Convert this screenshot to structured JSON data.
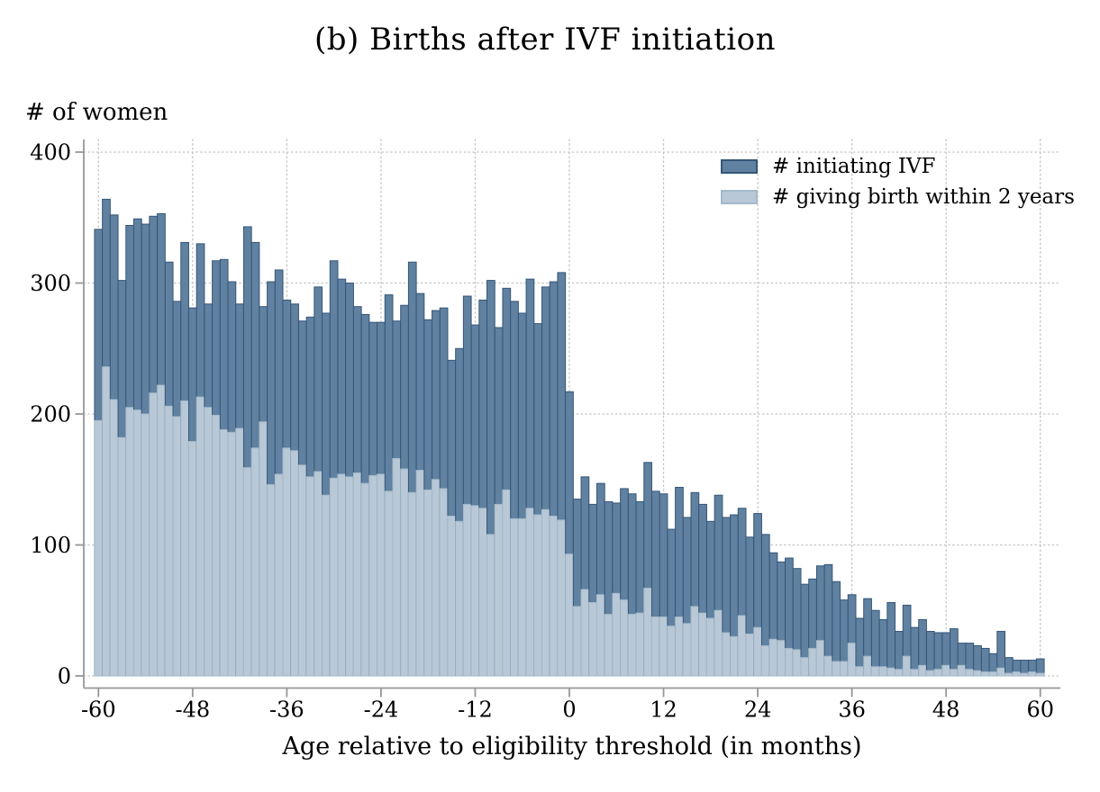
{
  "title": "(b) Births after IVF initiation",
  "chart_data": {
    "type": "bar",
    "overlay": true,
    "title": "(b) Births after IVF initiation",
    "xlabel": "Age relative to eligibility threshold (in months)",
    "ylabel": "# of women",
    "legend_position": "top-right-inside",
    "grid": {
      "on": true,
      "style": "dotted",
      "color": "#c3c3c3"
    },
    "axis_color": "#979797",
    "ylim": [
      0,
      400
    ],
    "xlim": [
      -62.5,
      62.5
    ],
    "y_ticks": [
      0,
      100,
      200,
      300,
      400
    ],
    "x_ticks": [
      -60,
      -48,
      -36,
      -24,
      -12,
      0,
      12,
      24,
      36,
      48,
      60
    ],
    "x": [
      -60,
      -59,
      -58,
      -57,
      -56,
      -55,
      -54,
      -53,
      -52,
      -51,
      -50,
      -49,
      -48,
      -47,
      -46,
      -45,
      -44,
      -43,
      -42,
      -41,
      -40,
      -39,
      -38,
      -37,
      -36,
      -35,
      -34,
      -33,
      -32,
      -31,
      -30,
      -29,
      -28,
      -27,
      -26,
      -25,
      -24,
      -23,
      -22,
      -21,
      -20,
      -19,
      -18,
      -17,
      -16,
      -15,
      -14,
      -13,
      -12,
      -11,
      -10,
      -9,
      -8,
      -7,
      -6,
      -5,
      -4,
      -3,
      -2,
      -1,
      0,
      1,
      2,
      3,
      4,
      5,
      6,
      7,
      8,
      9,
      10,
      11,
      12,
      13,
      14,
      15,
      16,
      17,
      18,
      19,
      20,
      21,
      22,
      23,
      24,
      25,
      26,
      27,
      28,
      29,
      30,
      31,
      32,
      33,
      34,
      35,
      36,
      37,
      38,
      39,
      40,
      41,
      42,
      43,
      44,
      45,
      46,
      47,
      48,
      49,
      50,
      51,
      52,
      53,
      54,
      55,
      56,
      57,
      58,
      59,
      60
    ],
    "series": [
      {
        "name": "# initiating IVF",
        "fill": "#60819f",
        "stroke": "#35567a",
        "values": [
          341,
          364,
          352,
          302,
          344,
          349,
          345,
          351,
          353,
          316,
          286,
          331,
          281,
          330,
          284,
          317,
          318,
          301,
          284,
          343,
          331,
          282,
          301,
          310,
          287,
          284,
          271,
          274,
          297,
          277,
          317,
          303,
          300,
          282,
          276,
          270,
          270,
          291,
          271,
          283,
          316,
          292,
          272,
          279,
          281,
          241,
          250,
          290,
          268,
          287,
          302,
          266,
          296,
          286,
          277,
          303,
          269,
          297,
          301,
          308,
          217,
          135,
          152,
          131,
          147,
          133,
          132,
          143,
          139,
          133,
          163,
          141,
          139,
          112,
          144,
          121,
          140,
          131,
          118,
          138,
          121,
          123,
          128,
          106,
          124,
          108,
          94,
          87,
          90,
          82,
          70,
          74,
          84,
          85,
          72,
          58,
          62,
          44,
          59,
          50,
          43,
          56,
          34,
          54,
          37,
          43,
          34,
          33,
          33,
          36,
          25,
          25,
          23,
          21,
          17,
          34,
          14,
          12,
          12,
          12,
          13
        ]
      },
      {
        "name": "# giving birth within 2 years",
        "fill": "#b8c8d6",
        "stroke": "#a4bacb",
        "values": [
          195,
          236,
          211,
          182,
          205,
          203,
          200,
          216,
          222,
          206,
          198,
          210,
          179,
          213,
          205,
          199,
          188,
          186,
          189,
          159,
          174,
          194,
          146,
          154,
          174,
          172,
          161,
          152,
          156,
          138,
          151,
          154,
          152,
          155,
          147,
          153,
          154,
          141,
          166,
          158,
          140,
          157,
          142,
          150,
          143,
          122,
          118,
          131,
          130,
          128,
          108,
          131,
          142,
          120,
          120,
          128,
          123,
          127,
          122,
          119,
          93,
          53,
          66,
          56,
          62,
          47,
          63,
          58,
          47,
          48,
          67,
          45,
          45,
          38,
          45,
          40,
          53,
          48,
          44,
          50,
          33,
          30,
          46,
          32,
          37,
          23,
          28,
          27,
          21,
          20,
          14,
          21,
          27,
          15,
          11,
          11,
          25,
          7,
          15,
          7,
          7,
          6,
          5,
          15,
          5,
          8,
          4,
          5,
          8,
          5,
          8,
          5,
          4,
          3,
          3,
          6,
          2,
          3,
          2,
          3,
          2
        ]
      }
    ]
  }
}
